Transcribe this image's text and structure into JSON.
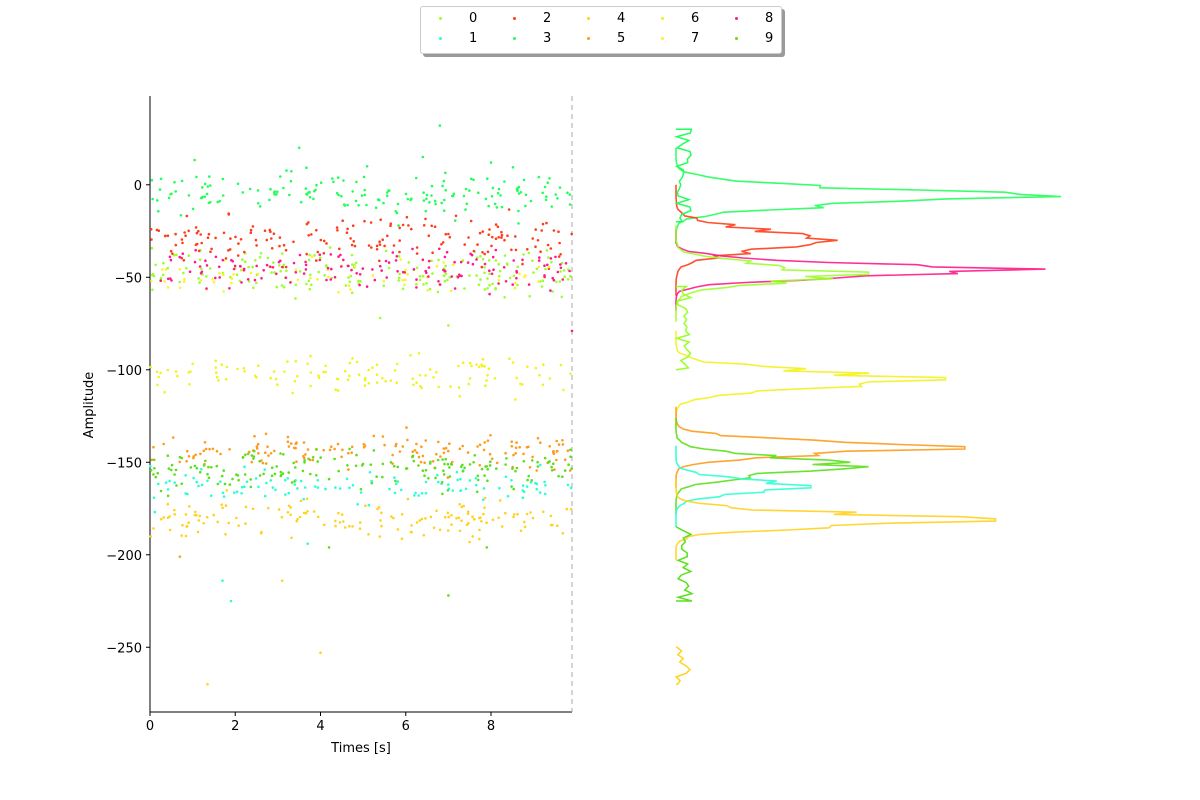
{
  "chart_data": [
    {
      "type": "scatter",
      "xlabel": "Times [s]",
      "ylabel": "Amplitude",
      "xlim": [
        0,
        9.9
      ],
      "ylim": [
        -285,
        48
      ],
      "xticks": [
        0,
        2,
        4,
        6,
        8
      ],
      "yticks": [
        0,
        -50,
        -100,
        -150,
        -200,
        -250
      ],
      "marker_line_x": 9.9,
      "grid": false,
      "series": [
        {
          "name": "0",
          "color": "#9aff2a",
          "center": -47,
          "spread": 6,
          "count": 180
        },
        {
          "name": "1",
          "color": "#2affd2",
          "center": -163,
          "spread": 4,
          "count": 110
        },
        {
          "name": "2",
          "color": "#ff3d1a",
          "center": -30,
          "spread": 6,
          "count": 170
        },
        {
          "name": "3",
          "color": "#22ff5a",
          "center": -5,
          "spread": 6,
          "count": 170
        },
        {
          "name": "4",
          "color": "#ffd21f",
          "center": -181,
          "spread": 5,
          "count": 150
        },
        {
          "name": "5",
          "color": "#ff9a1a",
          "center": -144,
          "spread": 5,
          "count": 150
        },
        {
          "name": "6",
          "color": "#f2f21f",
          "center": -103,
          "spread": 5,
          "count": 120
        },
        {
          "name": "7",
          "color": "#fff22a",
          "center": -50,
          "spread": 5,
          "count": 60
        },
        {
          "name": "8",
          "color": "#ff1a8a",
          "center": -46,
          "spread": 5,
          "count": 150
        },
        {
          "name": "9",
          "color": "#5ae01a",
          "center": -154,
          "spread": 5,
          "count": 170
        }
      ],
      "outliers": [
        {
          "x": 6.8,
          "y": 32,
          "series": "3"
        },
        {
          "x": 3.5,
          "y": 20,
          "series": "3"
        },
        {
          "x": 6.4,
          "y": 15,
          "series": "3"
        },
        {
          "x": 8.0,
          "y": 12,
          "series": "3"
        },
        {
          "x": 7.0,
          "y": -76,
          "series": "0"
        },
        {
          "x": 5.4,
          "y": -72,
          "series": "0"
        },
        {
          "x": 1.7,
          "y": -214,
          "series": "1"
        },
        {
          "x": 1.9,
          "y": -225,
          "series": "1"
        },
        {
          "x": 3.1,
          "y": -214,
          "series": "4"
        },
        {
          "x": 0.7,
          "y": -201,
          "series": "5"
        },
        {
          "x": 4.0,
          "y": -253,
          "series": "4"
        },
        {
          "x": 1.35,
          "y": -270,
          "series": "4"
        },
        {
          "x": 4.2,
          "y": -196,
          "series": "9"
        },
        {
          "x": 7.0,
          "y": -222,
          "series": "9"
        },
        {
          "x": 3.7,
          "y": -194,
          "series": "1"
        },
        {
          "x": 7.9,
          "y": -196,
          "series": "9"
        },
        {
          "x": 9.9,
          "y": -79,
          "series": "8"
        }
      ]
    },
    {
      "type": "line",
      "description_free": true,
      "orientation": "horizontal-histogram",
      "series": [
        {
          "name": "3",
          "color": "#22ff5a",
          "peak_y": -6,
          "peak": 1.0,
          "width": 5
        },
        {
          "name": "2",
          "color": "#ff3d1a",
          "peak_y": -30,
          "peak": 0.42,
          "width": 6
        },
        {
          "name": "8",
          "color": "#ff1a8a",
          "peak_y": -46,
          "peak": 0.96,
          "width": 4
        },
        {
          "name": "0",
          "color": "#9aff2a",
          "peak_y": -48,
          "peak": 0.5,
          "width": 5
        },
        {
          "name": "6",
          "color": "#f2f21f",
          "peak_y": -105,
          "peak": 0.7,
          "width": 5
        },
        {
          "name": "5",
          "color": "#ff9a1a",
          "peak_y": -142,
          "peak": 0.75,
          "width": 4
        },
        {
          "name": "9",
          "color": "#5ae01a",
          "peak_y": -152,
          "peak": 0.5,
          "width": 5
        },
        {
          "name": "1",
          "color": "#2affd2",
          "peak_y": -163,
          "peak": 0.35,
          "width": 4
        },
        {
          "name": "4",
          "color": "#ffd21f",
          "peak_y": -181,
          "peak": 0.83,
          "width": 4
        }
      ]
    }
  ],
  "legend": {
    "items": [
      {
        "label": "0",
        "color": "#9aff2a"
      },
      {
        "label": "1",
        "color": "#2affd2"
      },
      {
        "label": "2",
        "color": "#ff3d1a"
      },
      {
        "label": "3",
        "color": "#22ff5a"
      },
      {
        "label": "4",
        "color": "#ffd21f"
      },
      {
        "label": "5",
        "color": "#ff9a1a"
      },
      {
        "label": "6",
        "color": "#f2f21f"
      },
      {
        "label": "7",
        "color": "#fff22a"
      },
      {
        "label": "8",
        "color": "#ff1a8a"
      },
      {
        "label": "9",
        "color": "#5ae01a"
      }
    ]
  }
}
